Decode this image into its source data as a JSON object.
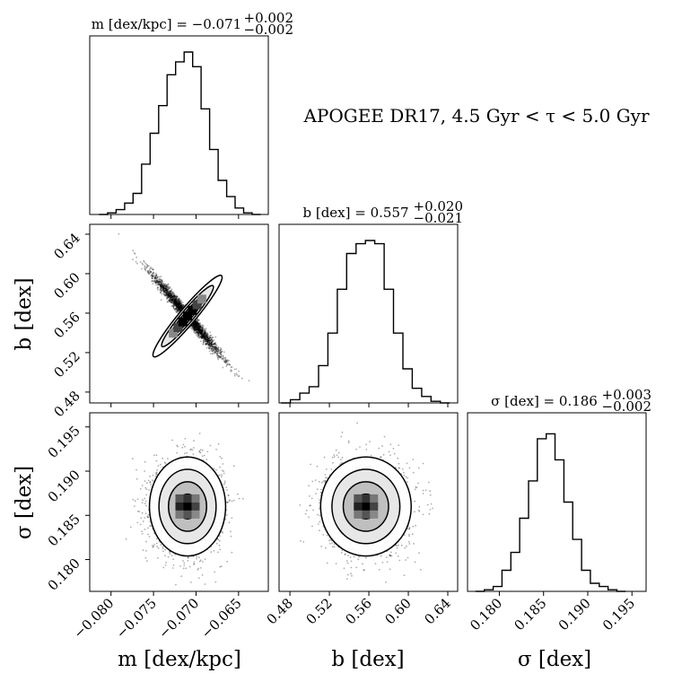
{
  "figure": {
    "annotation": "APOGEE DR17, 4.5 Gyr < τ < 5.0 Gyr"
  },
  "chart_data": {
    "type": "corner",
    "parameters": [
      {
        "key": "m",
        "axis_label": "m [dex/kpc]",
        "title": "m [dex/kpc] = −0.071",
        "title_plus": "+0.002",
        "title_minus": "−0.002",
        "median": -0.071,
        "err_plus": 0.002,
        "err_minus": 0.002,
        "range": [
          -0.0825,
          -0.0615
        ],
        "ticks": [
          -0.08,
          -0.075,
          -0.07,
          -0.065
        ],
        "tick_labels": [
          "−0.080",
          "−0.075",
          "−0.070",
          "−0.065"
        ],
        "hist": {
          "bin_start": -0.0814,
          "bin_width": 0.001,
          "counts": [
            0.0,
            0.01,
            0.03,
            0.07,
            0.13,
            0.31,
            0.5,
            0.67,
            0.86,
            0.94,
            1.0,
            0.91,
            0.65,
            0.4,
            0.21,
            0.11,
            0.04,
            0.01,
            0.0
          ]
        }
      },
      {
        "key": "b",
        "axis_label": "b [dex]",
        "title": "b [dex] = 0.557",
        "title_plus": "+0.020",
        "title_minus": "−0.021",
        "median": 0.557,
        "err_plus": 0.02,
        "err_minus": 0.021,
        "range": [
          0.469,
          0.65
        ],
        "ticks": [
          0.48,
          0.52,
          0.56,
          0.6,
          0.64
        ],
        "tick_labels": [
          "0.48",
          "0.52",
          "0.56",
          "0.60",
          "0.64"
        ],
        "hist": {
          "bin_start": 0.471,
          "bin_width": 0.0095,
          "counts": [
            0.0,
            0.02,
            0.06,
            0.1,
            0.23,
            0.43,
            0.7,
            0.92,
            0.98,
            1.0,
            0.98,
            0.7,
            0.43,
            0.21,
            0.09,
            0.04,
            0.01,
            0.0
          ]
        }
      },
      {
        "key": "sigma",
        "axis_label": "σ [dex]",
        "title": "σ [dex] = 0.186",
        "title_plus": "+0.003",
        "title_minus": "−0.002",
        "median": 0.186,
        "err_plus": 0.003,
        "err_minus": 0.002,
        "range": [
          0.1764,
          0.1966
        ],
        "ticks": [
          0.18,
          0.185,
          0.19,
          0.195
        ],
        "tick_labels": [
          "0.180",
          "0.185",
          "0.190",
          "0.195"
        ],
        "hist": {
          "bin_start": 0.1773,
          "bin_width": 0.001,
          "counts": [
            0.0,
            0.01,
            0.03,
            0.13,
            0.24,
            0.45,
            0.68,
            0.94,
            0.97,
            0.81,
            0.55,
            0.32,
            0.13,
            0.05,
            0.03,
            0.01,
            0.0
          ]
        }
      }
    ],
    "correlations": {
      "b_vs_m": -0.985,
      "sigma_vs_m": 0.0,
      "sigma_vs_b": 0.0
    },
    "grid": false,
    "colors": {
      "line": "#000000",
      "points": "#000000",
      "background": "#ffffff"
    }
  }
}
